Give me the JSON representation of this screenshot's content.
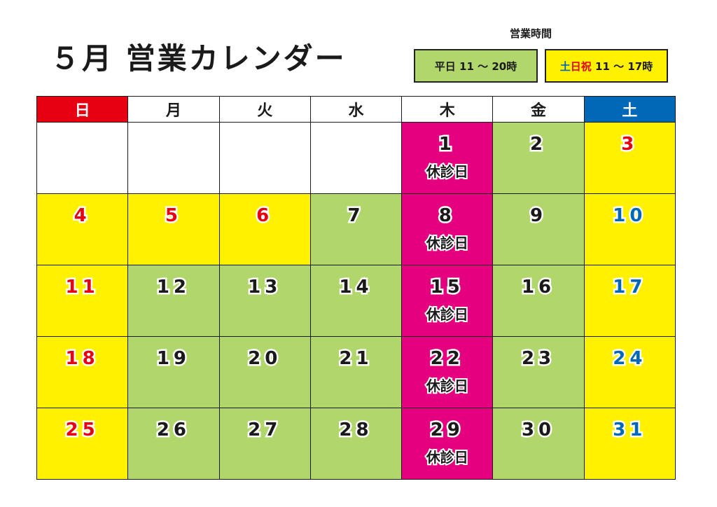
{
  "title": "５月 営業カレンダー",
  "hours": {
    "heading": "営業時間",
    "weekday": {
      "label": "平日",
      "time": "11 ～ 20時"
    },
    "weekend": {
      "label_do": "土",
      "label_nichi_shuku": "日祝",
      "time": "11 ～ 17時"
    }
  },
  "colors": {
    "sunday_header": "#e60012",
    "saturday_header": "#0068b7",
    "weekday_open": "#b1d66c",
    "weekend_holiday": "#fff100",
    "closed": "#e4007f",
    "red_text": "#e60012",
    "blue_text": "#0068b7"
  },
  "calendar": {
    "headers": [
      "日",
      "月",
      "火",
      "水",
      "木",
      "金",
      "土"
    ],
    "closed_label": "休診日",
    "weeks": [
      [
        {
          "day": "",
          "type": "none",
          "color": "dark"
        },
        {
          "day": "",
          "type": "none",
          "color": "dark"
        },
        {
          "day": "",
          "type": "none",
          "color": "dark"
        },
        {
          "day": "",
          "type": "none",
          "color": "dark"
        },
        {
          "day": "1",
          "type": "closed",
          "color": "dark",
          "note": "休診日"
        },
        {
          "day": "2",
          "type": "weekday",
          "color": "dark"
        },
        {
          "day": "3",
          "type": "weekend",
          "color": "red"
        }
      ],
      [
        {
          "day": "4",
          "type": "weekend",
          "color": "red"
        },
        {
          "day": "5",
          "type": "weekend",
          "color": "red"
        },
        {
          "day": "6",
          "type": "weekend",
          "color": "red"
        },
        {
          "day": "7",
          "type": "weekday",
          "color": "dark"
        },
        {
          "day": "8",
          "type": "closed",
          "color": "dark",
          "note": "休診日"
        },
        {
          "day": "9",
          "type": "weekday",
          "color": "dark"
        },
        {
          "day": "10",
          "type": "weekend",
          "color": "blue"
        }
      ],
      [
        {
          "day": "11",
          "type": "weekend",
          "color": "red"
        },
        {
          "day": "12",
          "type": "weekday",
          "color": "dark"
        },
        {
          "day": "13",
          "type": "weekday",
          "color": "dark"
        },
        {
          "day": "14",
          "type": "weekday",
          "color": "dark"
        },
        {
          "day": "15",
          "type": "closed",
          "color": "dark",
          "note": "休診日"
        },
        {
          "day": "16",
          "type": "weekday",
          "color": "dark"
        },
        {
          "day": "17",
          "type": "weekend",
          "color": "blue"
        }
      ],
      [
        {
          "day": "18",
          "type": "weekend",
          "color": "red"
        },
        {
          "day": "19",
          "type": "weekday",
          "color": "dark"
        },
        {
          "day": "20",
          "type": "weekday",
          "color": "dark"
        },
        {
          "day": "21",
          "type": "weekday",
          "color": "dark"
        },
        {
          "day": "22",
          "type": "closed",
          "color": "dark",
          "note": "休診日"
        },
        {
          "day": "23",
          "type": "weekday",
          "color": "dark"
        },
        {
          "day": "24",
          "type": "weekend",
          "color": "blue"
        }
      ],
      [
        {
          "day": "25",
          "type": "weekend",
          "color": "red"
        },
        {
          "day": "26",
          "type": "weekday",
          "color": "dark"
        },
        {
          "day": "27",
          "type": "weekday",
          "color": "dark"
        },
        {
          "day": "28",
          "type": "weekday",
          "color": "dark"
        },
        {
          "day": "29",
          "type": "closed",
          "color": "dark",
          "note": "休診日"
        },
        {
          "day": "30",
          "type": "weekday",
          "color": "dark"
        },
        {
          "day": "31",
          "type": "weekend",
          "color": "blue"
        }
      ]
    ]
  }
}
